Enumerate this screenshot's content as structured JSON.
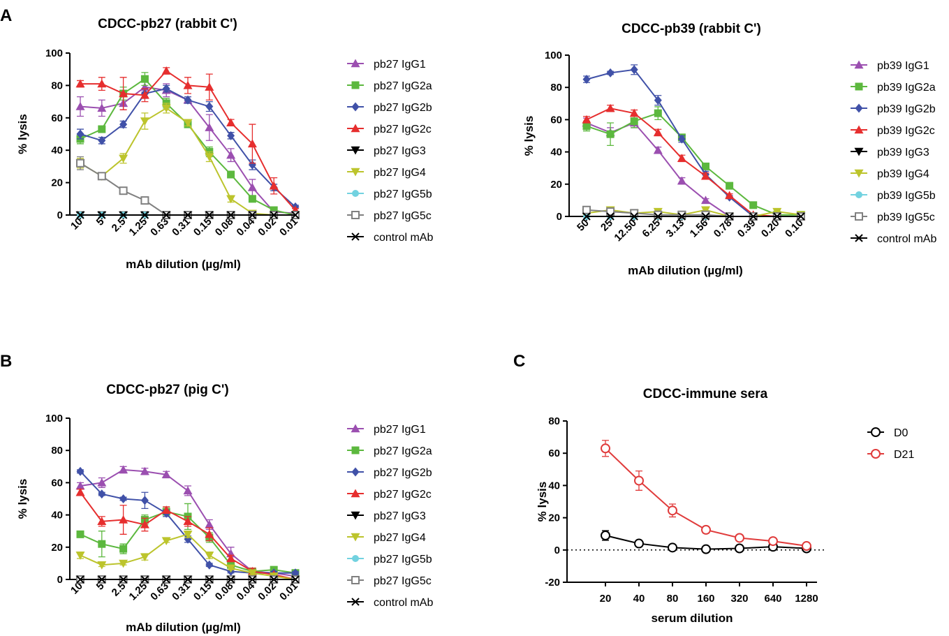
{
  "figure": {
    "panel_letters": {
      "A": "A",
      "B": "B",
      "C": "C"
    }
  },
  "chart_data": [
    {
      "id": "A1",
      "type": "line",
      "title": "CDCC-pb27 (rabbit C')",
      "xlabel": "mAb dilution (µg/ml)",
      "ylabel": "% lysis",
      "categories": [
        "10",
        "5",
        "2.5",
        "1.25",
        "0.63",
        "0.31",
        "0.15",
        "0.08",
        "0.04",
        "0.02",
        "0.01"
      ],
      "ylim": [
        0,
        100
      ],
      "yticks": [
        0,
        20,
        40,
        60,
        80,
        100
      ],
      "series": [
        {
          "name": "pb27 IgG1",
          "color": "#9b4fb0",
          "marker": "triangle",
          "values": [
            67,
            66,
            69,
            79,
            77,
            71,
            54,
            37,
            17,
            2,
            1
          ],
          "errors": [
            6,
            5,
            4,
            3,
            4,
            2,
            8,
            4,
            5,
            1,
            1
          ]
        },
        {
          "name": "pb27 IgG2a",
          "color": "#5cb83e",
          "marker": "square",
          "values": [
            47,
            53,
            75,
            84,
            69,
            56,
            39,
            25,
            10,
            3,
            0
          ],
          "errors": [
            3,
            2,
            4,
            4,
            3,
            2,
            3,
            2,
            2,
            1,
            1
          ]
        },
        {
          "name": "pb27 IgG2b",
          "color": "#4051a8",
          "marker": "diamond",
          "values": [
            50,
            46,
            56,
            75,
            78,
            71,
            67,
            49,
            31,
            17,
            5
          ],
          "errors": [
            3,
            2,
            2,
            3,
            2,
            2,
            3,
            2,
            3,
            2,
            1
          ]
        },
        {
          "name": "pb27 IgG2c",
          "color": "#e62e2e",
          "marker": "triangle",
          "values": [
            81,
            81,
            75,
            74,
            89,
            80,
            79,
            57,
            44,
            18,
            3
          ],
          "errors": [
            2,
            4,
            10,
            4,
            2,
            5,
            8,
            2,
            12,
            5,
            1
          ]
        },
        {
          "name": "pb27 IgG3",
          "color": "#000000",
          "marker": "triangle-down",
          "values": [
            0,
            0,
            0,
            0,
            0,
            0,
            0,
            0,
            0,
            0,
            0
          ],
          "errors": [
            0,
            0,
            0,
            0,
            0,
            0,
            0,
            0,
            0,
            0,
            0
          ]
        },
        {
          "name": "pb27 IgG4",
          "color": "#bcc42c",
          "marker": "triangle-down",
          "values": [
            32,
            24,
            35,
            58,
            66,
            57,
            36,
            10,
            1,
            0,
            0
          ],
          "errors": [
            3,
            2,
            3,
            5,
            3,
            2,
            3,
            2,
            1,
            0,
            0
          ]
        },
        {
          "name": "pb27 IgG5b",
          "color": "#72d2e0",
          "marker": "circle",
          "values": [
            0,
            0,
            0,
            0,
            0,
            0,
            0,
            0,
            0,
            0,
            0
          ],
          "errors": [
            0,
            0,
            0,
            0,
            0,
            0,
            0,
            0,
            0,
            0,
            0
          ]
        },
        {
          "name": "pb27 IgG5c",
          "color": "#808080",
          "marker": "square-open",
          "values": [
            32,
            24,
            15,
            9,
            0,
            0,
            0,
            0,
            0,
            0,
            0
          ],
          "errors": [
            4,
            1,
            1,
            1,
            0,
            0,
            0,
            0,
            0,
            0,
            0
          ]
        },
        {
          "name": "control mAb",
          "color": "#000000",
          "marker": "cross",
          "values": [
            0,
            0,
            0,
            0,
            0,
            0,
            0,
            0,
            0,
            0,
            0
          ],
          "errors": [
            0,
            0,
            0,
            0,
            0,
            0,
            0,
            0,
            0,
            0,
            0
          ]
        }
      ]
    },
    {
      "id": "A2",
      "type": "line",
      "title": "CDCC-pb39 (rabbit C')",
      "xlabel": "mAb dilution (µg/ml)",
      "ylabel": "% lysis",
      "categories": [
        "50",
        "25",
        "12.50",
        "6.25",
        "3.13",
        "1.56",
        "0.78",
        "0.39",
        "0.20",
        "0.10"
      ],
      "ylim": [
        0,
        100
      ],
      "yticks": [
        0,
        20,
        40,
        60,
        80,
        100
      ],
      "series": [
        {
          "name": "pb39 IgG1",
          "color": "#9b4fb0",
          "marker": "triangle",
          "values": [
            58,
            52,
            58,
            41,
            22,
            10,
            0,
            0,
            0,
            0
          ],
          "errors": [
            3,
            3,
            3,
            2,
            2,
            1,
            1,
            1,
            1,
            1
          ]
        },
        {
          "name": "pb39 IgG2a",
          "color": "#5cb83e",
          "marker": "square",
          "values": [
            56,
            51,
            59,
            64,
            49,
            31,
            19,
            7,
            1,
            1
          ],
          "errors": [
            3,
            7,
            4,
            4,
            2,
            2,
            1,
            1,
            1,
            1
          ]
        },
        {
          "name": "pb39 IgG2b",
          "color": "#4051a8",
          "marker": "diamond",
          "values": [
            85,
            89,
            91,
            72,
            48,
            26,
            12,
            0,
            0,
            0
          ],
          "errors": [
            2,
            1,
            3,
            3,
            2,
            2,
            1,
            1,
            1,
            0
          ]
        },
        {
          "name": "pb39 IgG2c",
          "color": "#e62e2e",
          "marker": "triangle",
          "values": [
            60,
            67,
            64,
            52,
            36,
            25,
            13,
            1,
            0,
            0
          ],
          "errors": [
            2,
            2,
            2,
            2,
            2,
            2,
            1,
            1,
            0,
            0
          ]
        },
        {
          "name": "pb39 IgG3",
          "color": "#000000",
          "marker": "triangle-down",
          "values": [
            0,
            0,
            0,
            0,
            0,
            0,
            0,
            0,
            0,
            0
          ],
          "errors": [
            0,
            0,
            0,
            0,
            0,
            0,
            0,
            0,
            0,
            0
          ]
        },
        {
          "name": "pb39 IgG4",
          "color": "#bcc42c",
          "marker": "triangle-down",
          "values": [
            2,
            4,
            2,
            3,
            1,
            4,
            0,
            0,
            3,
            1
          ],
          "errors": [
            1,
            1,
            1,
            1,
            1,
            1,
            1,
            1,
            1,
            1
          ]
        },
        {
          "name": "pb39 IgG5b",
          "color": "#72d2e0",
          "marker": "circle",
          "values": [
            0,
            0,
            0,
            0,
            0,
            0,
            0,
            0,
            0,
            0
          ],
          "errors": [
            0,
            0,
            0,
            0,
            0,
            0,
            0,
            0,
            0,
            0
          ]
        },
        {
          "name": "pb39 IgG5c",
          "color": "#808080",
          "marker": "square-open",
          "values": [
            4,
            3,
            2,
            1,
            1,
            1,
            0,
            0,
            0,
            0
          ],
          "errors": [
            1,
            1,
            1,
            1,
            1,
            1,
            0,
            0,
            0,
            0
          ]
        },
        {
          "name": "control mAb",
          "color": "#000000",
          "marker": "cross",
          "values": [
            0,
            0,
            0,
            0,
            0,
            0,
            0,
            0,
            0,
            0
          ],
          "errors": [
            0,
            0,
            0,
            0,
            0,
            0,
            0,
            0,
            0,
            0
          ]
        }
      ]
    },
    {
      "id": "B",
      "type": "line",
      "title": "CDCC-pb27 (pig C')",
      "xlabel": "mAb dilution (µg/ml)",
      "ylabel": "% lysis",
      "categories": [
        "10",
        "5",
        "2.5",
        "1.25",
        "0.63",
        "0.31",
        "0.15",
        "0.08",
        "0.04",
        "0.02",
        "0.01"
      ],
      "ylim": [
        0,
        100
      ],
      "yticks": [
        0,
        20,
        40,
        60,
        80,
        100
      ],
      "series": [
        {
          "name": "pb27 IgG1",
          "color": "#9b4fb0",
          "marker": "triangle",
          "values": [
            58,
            60,
            68,
            67,
            65,
            55,
            34,
            16,
            5,
            4,
            2
          ],
          "errors": [
            2,
            3,
            2,
            2,
            2,
            3,
            3,
            4,
            1,
            1,
            1
          ]
        },
        {
          "name": "pb27 IgG2a",
          "color": "#5cb83e",
          "marker": "square",
          "values": [
            28,
            22,
            19,
            37,
            42,
            39,
            26,
            9,
            5,
            6,
            4
          ],
          "errors": [
            2,
            8,
            3,
            3,
            3,
            8,
            3,
            2,
            1,
            1,
            1
          ]
        },
        {
          "name": "pb27 IgG2b",
          "color": "#4051a8",
          "marker": "diamond",
          "values": [
            67,
            53,
            50,
            49,
            41,
            25,
            9,
            5,
            4,
            4,
            4
          ],
          "errors": [
            1,
            1,
            1,
            5,
            2,
            2,
            1,
            1,
            1,
            1,
            1
          ]
        },
        {
          "name": "pb27 IgG2c",
          "color": "#e62e2e",
          "marker": "triangle",
          "values": [
            54,
            36,
            37,
            34,
            43,
            36,
            28,
            13,
            5,
            3,
            0
          ],
          "errors": [
            2,
            3,
            9,
            4,
            2,
            3,
            4,
            2,
            2,
            1,
            1
          ]
        },
        {
          "name": "pb27 IgG3",
          "color": "#000000",
          "marker": "triangle-down",
          "values": [
            0,
            0,
            0,
            0,
            0,
            0,
            0,
            0,
            0,
            0,
            0
          ],
          "errors": [
            0,
            0,
            0,
            0,
            0,
            0,
            0,
            0,
            0,
            0,
            0
          ]
        },
        {
          "name": "pb27 IgG4",
          "color": "#bcc42c",
          "marker": "triangle-down",
          "values": [
            15,
            9,
            10,
            14,
            24,
            28,
            15,
            7,
            4,
            2,
            0
          ],
          "errors": [
            2,
            1,
            1,
            2,
            1,
            2,
            2,
            1,
            1,
            1,
            0
          ]
        },
        {
          "name": "pb27 IgG5b",
          "color": "#72d2e0",
          "marker": "circle",
          "values": [
            0,
            0,
            0,
            0,
            0,
            0,
            0,
            0,
            0,
            0,
            0
          ],
          "errors": [
            0,
            0,
            0,
            0,
            0,
            0,
            0,
            0,
            0,
            0,
            0
          ]
        },
        {
          "name": "pb27 IgG5c",
          "color": "#808080",
          "marker": "square-open",
          "values": [
            0,
            0,
            0,
            0,
            0,
            0,
            0,
            0,
            0,
            0,
            0
          ],
          "errors": [
            0,
            0,
            0,
            0,
            0,
            0,
            0,
            0,
            0,
            0,
            0
          ]
        },
        {
          "name": "control mAb",
          "color": "#000000",
          "marker": "cross",
          "values": [
            0,
            0,
            0,
            0,
            0,
            0,
            0,
            0,
            0,
            0,
            0
          ],
          "errors": [
            0,
            0,
            0,
            0,
            0,
            0,
            0,
            0,
            0,
            0,
            0
          ]
        }
      ]
    },
    {
      "id": "C",
      "type": "line",
      "title": "CDCC-immune sera",
      "xlabel": "serum dilution",
      "ylabel": "% lysis",
      "categories": [
        "20",
        "40",
        "80",
        "160",
        "320",
        "640",
        "1280"
      ],
      "ylim": [
        -20,
        80
      ],
      "yticks": [
        -20,
        0,
        20,
        40,
        60,
        80
      ],
      "reference_line": 0,
      "series": [
        {
          "name": "D0",
          "color": "#000000",
          "marker": "circle-open",
          "values": [
            9,
            4,
            1.5,
            0.5,
            1,
            2,
            1
          ],
          "errors": [
            3,
            1,
            1,
            1,
            1,
            2,
            1
          ]
        },
        {
          "name": "D21",
          "color": "#e03b3b",
          "marker": "circle-open",
          "values": [
            63,
            43,
            24.5,
            12.5,
            7.5,
            5.5,
            2.5
          ],
          "errors": [
            5,
            6,
            4,
            2,
            1,
            1,
            1
          ]
        }
      ]
    }
  ]
}
